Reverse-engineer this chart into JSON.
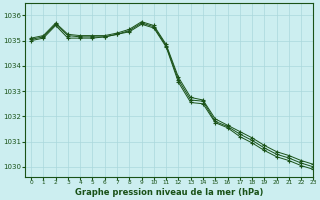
{
  "title": "Graphe pression niveau de la mer (hPa)",
  "background_color": "#cceef0",
  "grid_color": "#aad8dc",
  "line_color": "#1a5218",
  "marker_color": "#1a5218",
  "xlim": [
    -0.5,
    23
  ],
  "ylim": [
    1029.6,
    1036.5
  ],
  "yticks": [
    1030,
    1031,
    1032,
    1033,
    1034,
    1035,
    1036
  ],
  "xticks": [
    0,
    1,
    2,
    3,
    4,
    5,
    6,
    7,
    8,
    9,
    10,
    11,
    12,
    13,
    14,
    15,
    16,
    17,
    18,
    19,
    20,
    21,
    22,
    23
  ],
  "series1": [
    1035.0,
    1035.1,
    1035.6,
    1035.1,
    1035.1,
    1035.1,
    1035.15,
    1035.25,
    1035.35,
    1035.65,
    1035.5,
    1034.75,
    1033.35,
    1032.55,
    1032.5,
    1031.75,
    1031.55,
    1031.2,
    1030.95,
    1030.65,
    1030.4,
    1030.25,
    1030.05,
    1029.9
  ],
  "series2": [
    1035.05,
    1035.15,
    1035.65,
    1035.2,
    1035.15,
    1035.15,
    1035.15,
    1035.25,
    1035.4,
    1035.7,
    1035.55,
    1034.8,
    1033.45,
    1032.65,
    1032.6,
    1031.8,
    1031.6,
    1031.3,
    1031.05,
    1030.75,
    1030.5,
    1030.35,
    1030.15,
    1030.0
  ],
  "series3": [
    1035.1,
    1035.2,
    1035.7,
    1035.25,
    1035.2,
    1035.2,
    1035.2,
    1035.3,
    1035.45,
    1035.75,
    1035.6,
    1034.85,
    1033.55,
    1032.75,
    1032.65,
    1031.9,
    1031.65,
    1031.4,
    1031.15,
    1030.85,
    1030.6,
    1030.45,
    1030.25,
    1030.1
  ],
  "x_hours": [
    0,
    1,
    2,
    3,
    4,
    5,
    6,
    7,
    8,
    9,
    10,
    11,
    12,
    13,
    14,
    15,
    16,
    17,
    18,
    19,
    20,
    21,
    22,
    23
  ]
}
